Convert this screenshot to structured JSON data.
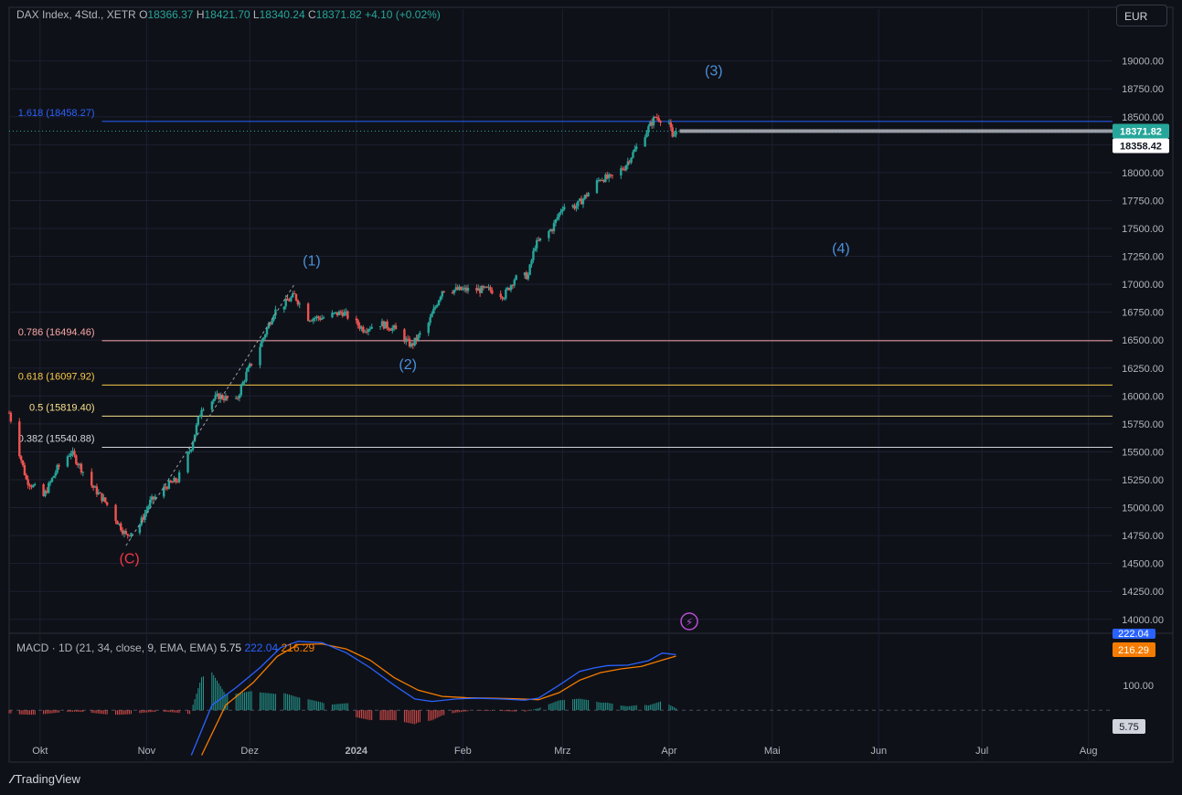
{
  "header": {
    "symbol": "DAX Index, 4Std., XETR",
    "o_label": "O",
    "o_val": "18366.37",
    "h_label": "H",
    "h_val": "18421.70",
    "l_label": "L",
    "l_val": "18340.24",
    "c_label": "C",
    "c_val": "18371.82",
    "change": "+4.10 (+0.02%)"
  },
  "currency_button": "EUR",
  "macd_header": {
    "label": "MACD · 1D (21, 34, close, 9, EMA, EMA)",
    "hist": "5.75",
    "macd": "222.04",
    "signal": "216.29"
  },
  "branding": {
    "name": "TradingView"
  },
  "colors": {
    "up": "#26a69a",
    "down": "#ef5350",
    "macd": "#2962ff",
    "signal": "#f57c00",
    "wave": "#4a90d9",
    "wave_c": "#f23645",
    "fib_1618": "#2962ff",
    "fib_786": "#f7a6a6",
    "fib_618": "#f7c948",
    "fib_5": "#f7e08a",
    "fib_382": "#d1d4dc"
  },
  "chart_data": {
    "type": "candlestick",
    "ylim": [
      13900,
      19300
    ],
    "y_ticks": [
      "14000.00",
      "14250.00",
      "14500.00",
      "14750.00",
      "15000.00",
      "15250.00",
      "15500.00",
      "15750.00",
      "16000.00",
      "16250.00",
      "16500.00",
      "16750.00",
      "17000.00",
      "17250.00",
      "17500.00",
      "17750.00",
      "18000.00",
      "18250.00",
      "18500.00",
      "18750.00",
      "19000.00"
    ],
    "x_tick_labels": [
      "Okt",
      "Nov",
      "Dez",
      "2024",
      "Feb",
      "Mrz",
      "Apr",
      "Mai",
      "Jun",
      "Jul",
      "Aug"
    ],
    "x_start": "2023-09-22",
    "x_end": "2024-08-08",
    "last_date": "2024-04-03",
    "price_path": [
      [
        "2023-09-22",
        15850
      ],
      [
        "2023-09-27",
        15250
      ],
      [
        "2023-10-02",
        15100
      ],
      [
        "2023-10-06",
        15350
      ],
      [
        "2023-10-10",
        15500
      ],
      [
        "2023-10-16",
        15200
      ],
      [
        "2023-10-20",
        15050
      ],
      [
        "2023-10-23",
        14900
      ],
      [
        "2023-10-26",
        14750
      ],
      [
        "2023-10-30",
        14850
      ],
      [
        "2023-11-02",
        15050
      ],
      [
        "2023-11-07",
        15200
      ],
      [
        "2023-11-10",
        15250
      ],
      [
        "2023-11-14",
        15550
      ],
      [
        "2023-11-17",
        15900
      ],
      [
        "2023-11-22",
        16000
      ],
      [
        "2023-11-27",
        15950
      ],
      [
        "2023-11-30",
        16200
      ],
      [
        "2023-12-04",
        16450
      ],
      [
        "2023-12-08",
        16750
      ],
      [
        "2023-12-12",
        16850
      ],
      [
        "2023-12-14",
        16900
      ],
      [
        "2023-12-18",
        16700
      ],
      [
        "2023-12-22",
        16700
      ],
      [
        "2023-12-28",
        16750
      ],
      [
        "2024-01-03",
        16600
      ],
      [
        "2024-01-08",
        16650
      ],
      [
        "2024-01-12",
        16600
      ],
      [
        "2024-01-17",
        16450
      ],
      [
        "2024-01-22",
        16650
      ],
      [
        "2024-01-26",
        16950
      ],
      [
        "2024-01-31",
        16950
      ],
      [
        "2024-02-05",
        16950
      ],
      [
        "2024-02-09",
        16950
      ],
      [
        "2024-02-13",
        16900
      ],
      [
        "2024-02-16",
        17050
      ],
      [
        "2024-02-20",
        17080
      ],
      [
        "2024-02-22",
        17350
      ],
      [
        "2024-02-27",
        17500
      ],
      [
        "2024-03-01",
        17700
      ],
      [
        "2024-03-05",
        17700
      ],
      [
        "2024-03-08",
        17800
      ],
      [
        "2024-03-12",
        17950
      ],
      [
        "2024-03-15",
        17950
      ],
      [
        "2024-03-19",
        18050
      ],
      [
        "2024-03-22",
        18200
      ],
      [
        "2024-03-26",
        18400
      ],
      [
        "2024-03-28",
        18500
      ],
      [
        "2024-04-01",
        18450
      ],
      [
        "2024-04-02",
        18300
      ],
      [
        "2024-04-03",
        18372
      ]
    ],
    "current_price": "18371.82",
    "crosshair_price": "18358.42",
    "fib_levels": [
      {
        "ratio": "1.618",
        "price": 18458.27,
        "label": "1.618 (18458.27)"
      },
      {
        "ratio": "0.786",
        "price": 16494.46,
        "label": "0.786 (16494.46)"
      },
      {
        "ratio": "0.618",
        "price": 16097.92,
        "label": "0.618 (16097.92)"
      },
      {
        "ratio": "0.5",
        "price": 15819.4,
        "label": "0.5 (15819.40)"
      },
      {
        "ratio": "0.382",
        "price": 15540.88,
        "label": "0.382 (15540.88)"
      }
    ],
    "wave_labels": [
      {
        "text": "(C)",
        "date": "2023-10-27",
        "price": 14500
      },
      {
        "text": "(1)",
        "date": "2023-12-19",
        "price": 17170
      },
      {
        "text": "(2)",
        "date": "2024-01-16",
        "price": 16240
      },
      {
        "text": "(3)",
        "date": "2024-04-14",
        "price": 18870
      },
      {
        "text": "(4)",
        "date": "2024-05-21",
        "price": 17280
      }
    ],
    "macd": {
      "y_ticks": [
        "100.00"
      ],
      "hist_value": "5.75",
      "macd_value": "222.04",
      "signal_value": "216.29",
      "macd_path": [
        [
          "2023-11-14",
          -180
        ],
        [
          "2023-11-20",
          20
        ],
        [
          "2023-11-27",
          90
        ],
        [
          "2023-12-04",
          170
        ],
        [
          "2023-12-10",
          250
        ],
        [
          "2023-12-15",
          275
        ],
        [
          "2023-12-22",
          270
        ],
        [
          "2023-12-29",
          230
        ],
        [
          "2024-01-05",
          170
        ],
        [
          "2024-01-12",
          100
        ],
        [
          "2024-01-18",
          45
        ],
        [
          "2024-01-23",
          35
        ],
        [
          "2024-01-30",
          45
        ],
        [
          "2024-02-05",
          48
        ],
        [
          "2024-02-12",
          45
        ],
        [
          "2024-02-19",
          40
        ],
        [
          "2024-02-23",
          48
        ],
        [
          "2024-02-29",
          100
        ],
        [
          "2024-03-06",
          155
        ],
        [
          "2024-03-10",
          168
        ],
        [
          "2024-03-14",
          178
        ],
        [
          "2024-03-20",
          180
        ],
        [
          "2024-03-26",
          198
        ],
        [
          "2024-03-30",
          228
        ],
        [
          "2024-04-03",
          222
        ]
      ],
      "signal_path": [
        [
          "2023-11-17",
          -180
        ],
        [
          "2023-11-24",
          20
        ],
        [
          "2023-12-02",
          110
        ],
        [
          "2023-12-09",
          215
        ],
        [
          "2023-12-15",
          262
        ],
        [
          "2023-12-22",
          265
        ],
        [
          "2023-12-29",
          245
        ],
        [
          "2024-01-05",
          200
        ],
        [
          "2024-01-12",
          130
        ],
        [
          "2024-01-19",
          80
        ],
        [
          "2024-01-26",
          55
        ],
        [
          "2024-02-02",
          50
        ],
        [
          "2024-02-09",
          48
        ],
        [
          "2024-02-16",
          46
        ],
        [
          "2024-02-23",
          42
        ],
        [
          "2024-02-29",
          70
        ],
        [
          "2024-03-06",
          120
        ],
        [
          "2024-03-12",
          150
        ],
        [
          "2024-03-18",
          165
        ],
        [
          "2024-03-24",
          175
        ],
        [
          "2024-03-30",
          200
        ],
        [
          "2024-04-03",
          216
        ]
      ]
    }
  }
}
